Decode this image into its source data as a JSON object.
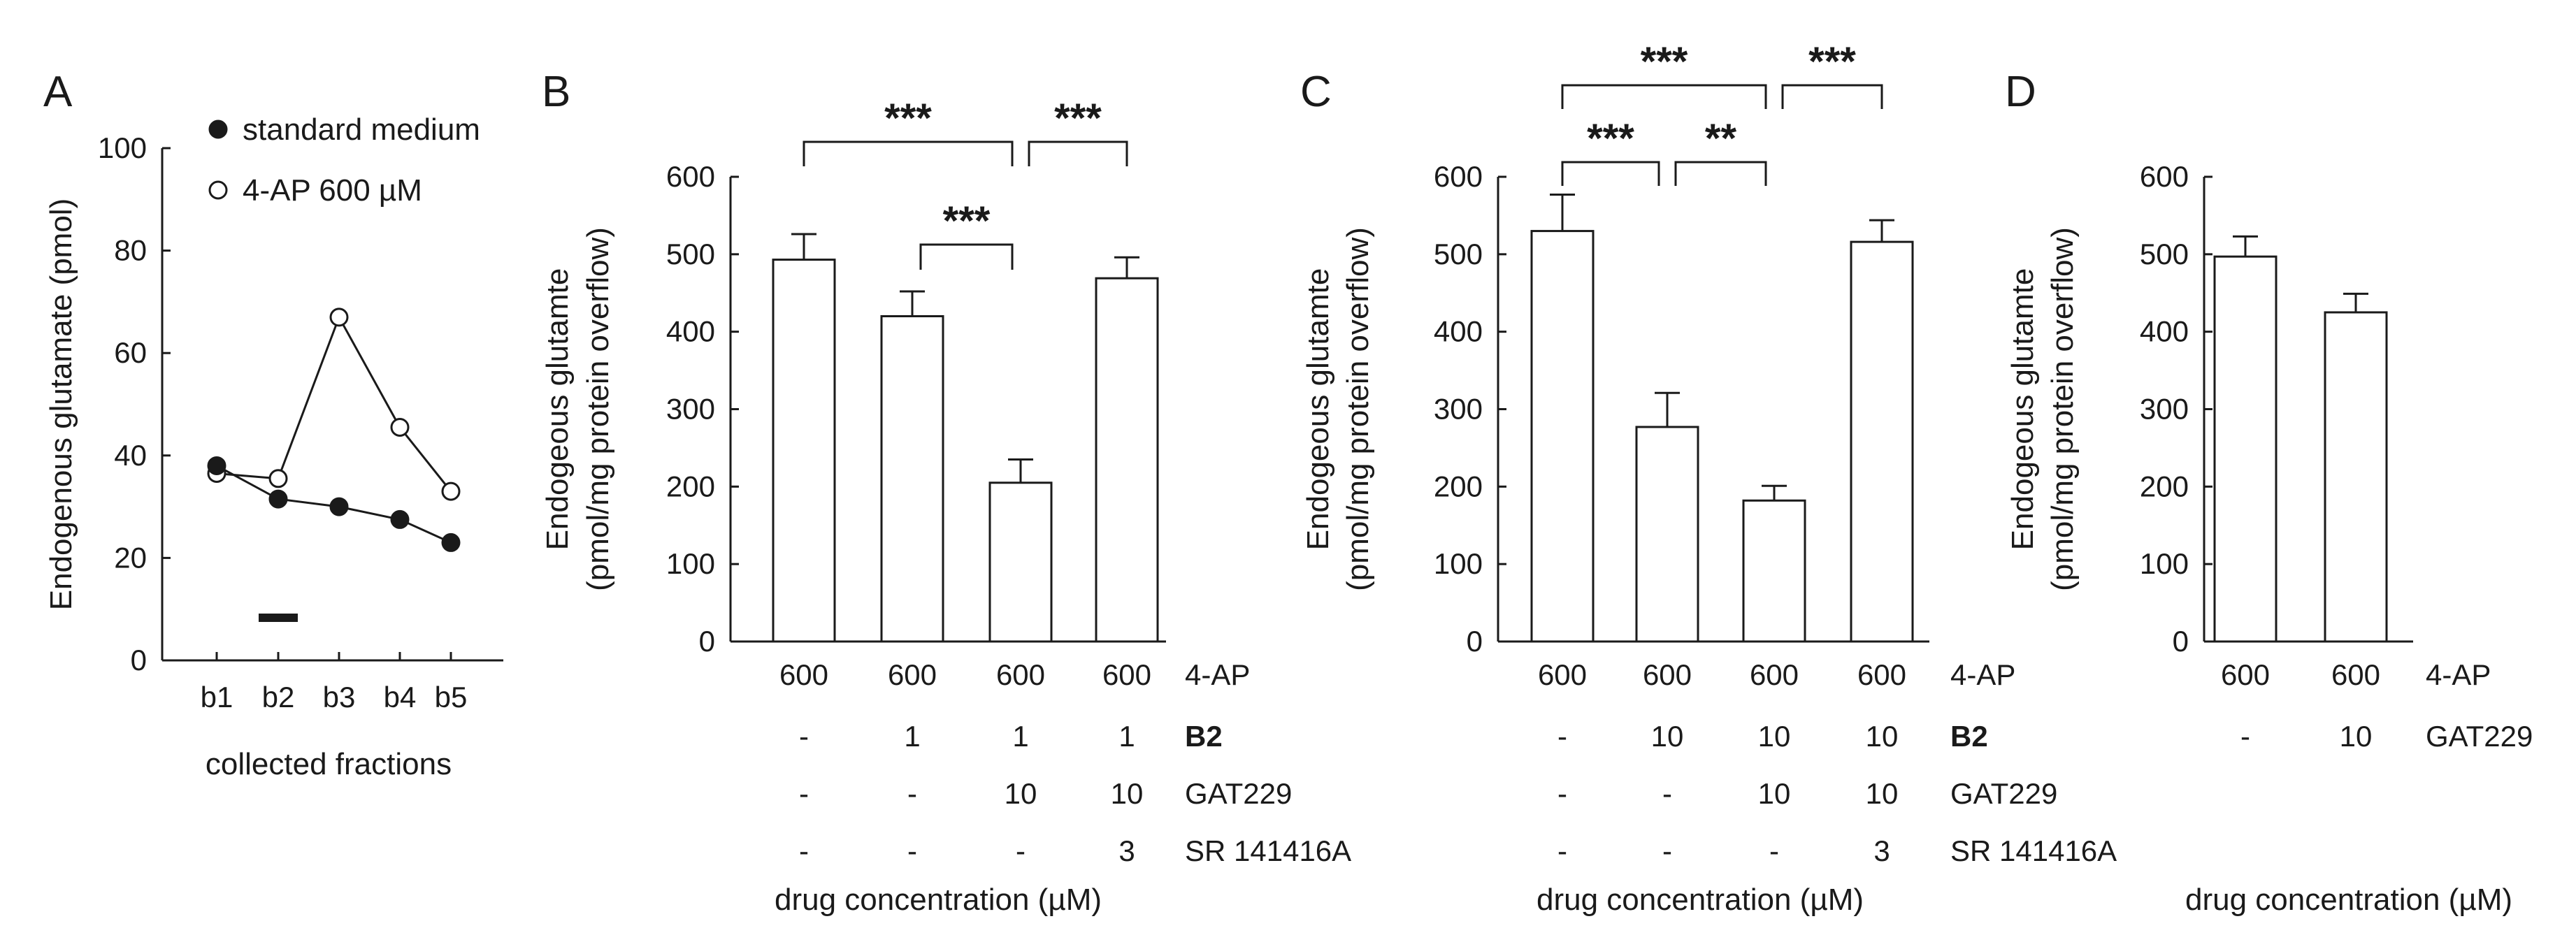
{
  "chart_data": [
    {
      "panel": "A",
      "type": "line",
      "ylabel": "Endogenous glutamate (pmol)",
      "xlabel": "collected fractions",
      "categories": [
        "b1",
        "b2",
        "b3",
        "b4",
        "b5"
      ],
      "ylim": [
        0,
        100
      ],
      "yticks": [
        "0",
        "20",
        "40",
        "60",
        "80",
        "100"
      ],
      "series": [
        {
          "name": "standard medium",
          "marker": "filled",
          "values": [
            38,
            31.5,
            30,
            27.5,
            23
          ]
        },
        {
          "name": "4-AP 600 µM",
          "marker": "open",
          "values": [
            36.5,
            35.5,
            67,
            45.5,
            33
          ]
        }
      ],
      "stimulus_bar_at": "b2"
    },
    {
      "panel": "B",
      "type": "bar",
      "ylabel_line1": "Endogeous glutamte",
      "ylabel_line2": "(pmol/mg protein overflow)",
      "ylim": [
        0,
        600
      ],
      "yticks": [
        "0",
        "100",
        "200",
        "300",
        "400",
        "500",
        "600"
      ],
      "values": [
        493,
        420,
        205,
        469
      ],
      "errors": [
        33,
        32,
        30,
        27
      ],
      "conditions": [
        {
          "label": "4-AP",
          "bold": false,
          "values": [
            "600",
            "600",
            "600",
            "600"
          ]
        },
        {
          "label": "B2",
          "bold": true,
          "values": [
            "-",
            "1",
            "1",
            "1"
          ]
        },
        {
          "label": "GAT229",
          "bold": false,
          "values": [
            "-",
            "-",
            "10",
            "10"
          ]
        },
        {
          "label": "SR 141416A",
          "bold": false,
          "values": [
            "-",
            "-",
            "-",
            "3"
          ]
        }
      ],
      "xlabel": "drug concentration (µM)",
      "significance": [
        {
          "from": 0,
          "to": 2,
          "label": "***"
        },
        {
          "from": 2,
          "to": 3,
          "label": "***"
        },
        {
          "from": 1,
          "to": 2,
          "label": "***"
        }
      ]
    },
    {
      "panel": "C",
      "type": "bar",
      "ylabel_line1": "Endogeous glutamte",
      "ylabel_line2": "(pmol/mg protein overflow)",
      "ylim": [
        0,
        600
      ],
      "yticks": [
        "0",
        "100",
        "200",
        "300",
        "400",
        "500",
        "600"
      ],
      "values": [
        530,
        277,
        182,
        516
      ],
      "errors": [
        47,
        44,
        19,
        28
      ],
      "conditions": [
        {
          "label": "4-AP",
          "bold": false,
          "values": [
            "600",
            "600",
            "600",
            "600"
          ]
        },
        {
          "label": "B2",
          "bold": true,
          "values": [
            "-",
            "10",
            "10",
            "10"
          ]
        },
        {
          "label": "GAT229",
          "bold": false,
          "values": [
            "-",
            "-",
            "10",
            "10"
          ]
        },
        {
          "label": "SR 141416A",
          "bold": false,
          "values": [
            "-",
            "-",
            "-",
            "3"
          ]
        }
      ],
      "xlabel": "drug concentration (µM)",
      "significance": [
        {
          "from": 0,
          "to": 2,
          "label": "***"
        },
        {
          "from": 2,
          "to": 3,
          "label": "***"
        },
        {
          "from": 0,
          "to": 1,
          "label": "***"
        },
        {
          "from": 1,
          "to": 2,
          "label": "**"
        }
      ]
    },
    {
      "panel": "D",
      "type": "bar",
      "ylabel_line1": "Endogeous glutamte",
      "ylabel_line2": "(pmol/mg protein overflow)",
      "ylim": [
        0,
        600
      ],
      "yticks": [
        "0",
        "100",
        "200",
        "300",
        "400",
        "500",
        "600"
      ],
      "values": [
        497,
        425
      ],
      "errors": [
        26,
        24
      ],
      "conditions": [
        {
          "label": "4-AP",
          "bold": false,
          "values": [
            "600",
            "600"
          ]
        },
        {
          "label": "GAT229",
          "bold": false,
          "values": [
            "-",
            "10"
          ]
        }
      ],
      "xlabel": "drug concentration (µM)",
      "significance": []
    }
  ]
}
